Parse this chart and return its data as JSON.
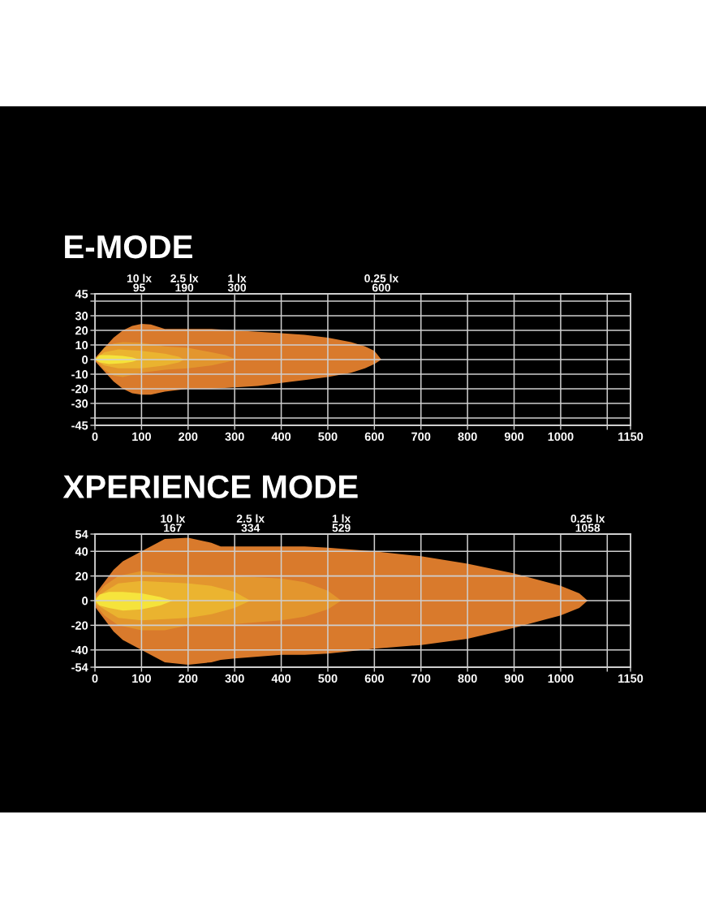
{
  "chart_data": [
    {
      "type": "area",
      "title": "E-MODE",
      "xlim": [
        0,
        1150
      ],
      "ylim": [
        -45,
        45
      ],
      "grid": true,
      "xticks": [
        0,
        100,
        200,
        300,
        400,
        500,
        600,
        700,
        800,
        900,
        1000,
        {
          "value": 1100,
          "label": null
        },
        1150
      ],
      "yticks": [
        -45,
        {
          "value": -40,
          "label": null
        },
        -30,
        -20,
        -10,
        0,
        10,
        20,
        30,
        {
          "value": 40,
          "label": null
        },
        45
      ],
      "annotations": [
        "10 lx\n95",
        "2.5 lx\n190",
        "1 lx\n300",
        "0.25 lx\n600"
      ],
      "series": [
        {
          "color": "#f6e43c",
          "x": [
            0,
            10,
            30,
            60,
            80,
            95
          ],
          "values": [
            0,
            3,
            3,
            2.5,
            1.5,
            0
          ]
        },
        {
          "color": "#f5e33b",
          "x": [
            0,
            10,
            30,
            60,
            80,
            95
          ],
          "values": [
            0,
            -2,
            -3,
            -2.5,
            -1.5,
            0
          ]
        },
        {
          "color": "#ebb430",
          "x": [
            0,
            20,
            50,
            100,
            150,
            180,
            192
          ],
          "values": [
            0,
            5,
            7,
            6,
            4,
            2,
            0
          ]
        },
        {
          "color": "#eab32f",
          "x": [
            0,
            20,
            50,
            100,
            150,
            180,
            192
          ],
          "values": [
            0,
            -4,
            -6,
            -6,
            -4,
            -2,
            0
          ]
        },
        {
          "color": "#e3962e",
          "x": [
            0,
            20,
            40,
            60,
            100,
            150,
            200,
            250,
            280,
            305
          ],
          "values": [
            0,
            8,
            11,
            12,
            11.5,
            9,
            8,
            5,
            3,
            0
          ]
        },
        {
          "color": "#e2952d",
          "x": [
            0,
            20,
            40,
            60,
            100,
            150,
            200,
            250,
            280,
            305
          ],
          "values": [
            0,
            -7,
            -11,
            -12,
            -9,
            -7,
            -6,
            -4,
            -2,
            0
          ]
        },
        {
          "color": "#d97a2c",
          "x": [
            0,
            20,
            40,
            60,
            80,
            100,
            120,
            150,
            200,
            250,
            300,
            350,
            400,
            450,
            500,
            550,
            580,
            600,
            615
          ],
          "values": [
            1,
            8,
            15,
            20,
            23,
            24.5,
            24,
            21,
            21,
            21,
            20,
            19,
            18,
            17,
            15,
            12,
            9,
            6,
            0
          ]
        },
        {
          "color": "#d97a2c",
          "x": [
            0,
            20,
            40,
            60,
            80,
            100,
            120,
            150,
            200,
            250,
            300,
            350,
            400,
            450,
            500,
            550,
            580,
            600,
            615
          ],
          "values": [
            -1,
            -8,
            -15,
            -20,
            -23,
            -24,
            -24,
            -22,
            -20,
            -20,
            -19,
            -18,
            -16,
            -14,
            -12,
            -9,
            -6,
            -3,
            0
          ]
        }
      ]
    },
    {
      "type": "area",
      "title": "XPERIENCE MODE",
      "xlim": [
        0,
        1150
      ],
      "ylim": [
        -54,
        54
      ],
      "grid": true,
      "xticks": [
        0,
        100,
        200,
        300,
        400,
        500,
        600,
        700,
        800,
        900,
        1000,
        {
          "value": 1100,
          "label": null
        },
        1150
      ],
      "yticks": [
        -54,
        -40,
        -20,
        0,
        20,
        40,
        54
      ],
      "annotations": [
        "10 lx\n167",
        "2.5 lx\n334",
        "1 lx\n529",
        "0.25 lx\n1058"
      ],
      "series": [
        {
          "color": "#f6e43c",
          "x": [
            0,
            10,
            30,
            60,
            100,
            140,
            167
          ],
          "values": [
            0,
            5,
            7,
            7,
            6,
            3,
            0
          ]
        },
        {
          "color": "#f5e33b",
          "x": [
            0,
            10,
            30,
            60,
            100,
            140,
            167
          ],
          "values": [
            0,
            -4,
            -6,
            -8,
            -7,
            -4,
            0
          ]
        },
        {
          "color": "#ebb430",
          "x": [
            0,
            20,
            50,
            100,
            200,
            250,
            300,
            334
          ],
          "values": [
            2,
            7,
            14,
            16,
            14,
            12,
            7,
            0
          ]
        },
        {
          "color": "#eab32f",
          "x": [
            0,
            20,
            50,
            100,
            200,
            250,
            300,
            334
          ],
          "values": [
            -2,
            -7,
            -14,
            -16,
            -14,
            -11,
            -6,
            0
          ]
        },
        {
          "color": "#e3962e",
          "x": [
            0,
            20,
            50,
            100,
            150,
            200,
            300,
            400,
            450,
            500,
            529
          ],
          "values": [
            3,
            12,
            20,
            24,
            22,
            21,
            20,
            18,
            15,
            8,
            0
          ]
        },
        {
          "color": "#e2952d",
          "x": [
            0,
            20,
            50,
            100,
            150,
            200,
            300,
            400,
            450,
            500,
            529
          ],
          "values": [
            -3,
            -12,
            -20,
            -24,
            -24,
            -20,
            -19,
            -16,
            -13,
            -7,
            0
          ]
        },
        {
          "color": "#d97a2c",
          "x": [
            0,
            20,
            40,
            60,
            100,
            150,
            200,
            250,
            270,
            300,
            400,
            450,
            500,
            600,
            700,
            800,
            900,
            1000,
            1040,
            1058
          ],
          "values": [
            5,
            15,
            25,
            32,
            40,
            50,
            51,
            47,
            44,
            44,
            44,
            44,
            43,
            40,
            36,
            30,
            22,
            12,
            6,
            0
          ]
        },
        {
          "color": "#d97a2c",
          "x": [
            0,
            20,
            40,
            60,
            100,
            150,
            200,
            250,
            270,
            300,
            400,
            450,
            500,
            600,
            700,
            800,
            900,
            1000,
            1040,
            1058
          ],
          "values": [
            -5,
            -15,
            -25,
            -32,
            -40,
            -50,
            -52,
            -50,
            -48,
            -47,
            -44,
            -44,
            -43,
            -39,
            -36,
            -31,
            -22,
            -12,
            -6,
            0
          ]
        }
      ]
    }
  ]
}
